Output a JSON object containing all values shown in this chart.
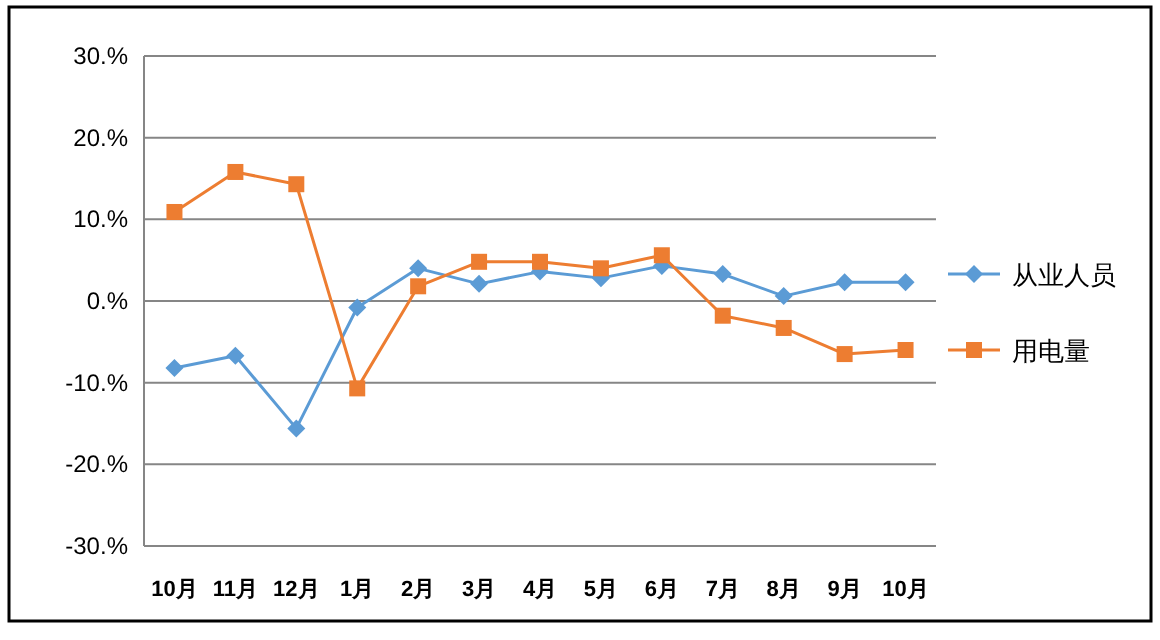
{
  "chart_data": {
    "type": "line",
    "categories": [
      "10月",
      "11月",
      "12月",
      "1月",
      "2月",
      "3月",
      "4月",
      "5月",
      "6月",
      "7月",
      "8月",
      "9月",
      "10月"
    ],
    "series": [
      {
        "name": "从业人员",
        "color": "#5b9bd5",
        "marker": "diamond",
        "values": [
          -8.2,
          -6.7,
          -15.6,
          -0.8,
          4.0,
          2.1,
          3.6,
          2.8,
          4.3,
          3.3,
          0.6,
          2.3,
          2.3
        ]
      },
      {
        "name": "用电量",
        "color": "#ed7d31",
        "marker": "square",
        "values": [
          10.9,
          15.8,
          14.3,
          -10.7,
          1.8,
          4.8,
          4.8,
          4.0,
          5.6,
          -1.8,
          -3.3,
          -6.5,
          -6.0
        ]
      }
    ],
    "ylim": [
      -30,
      30
    ],
    "yticks": [
      {
        "value": -30,
        "label": "-30.%"
      },
      {
        "value": -20,
        "label": "-20.%"
      },
      {
        "value": -10,
        "label": "-10.%"
      },
      {
        "value": 0,
        "label": "0.%"
      },
      {
        "value": 10,
        "label": "10.%"
      },
      {
        "value": 20,
        "label": "20.%"
      },
      {
        "value": 30,
        "label": "30.%"
      }
    ],
    "grid": "y",
    "legend": "right"
  }
}
